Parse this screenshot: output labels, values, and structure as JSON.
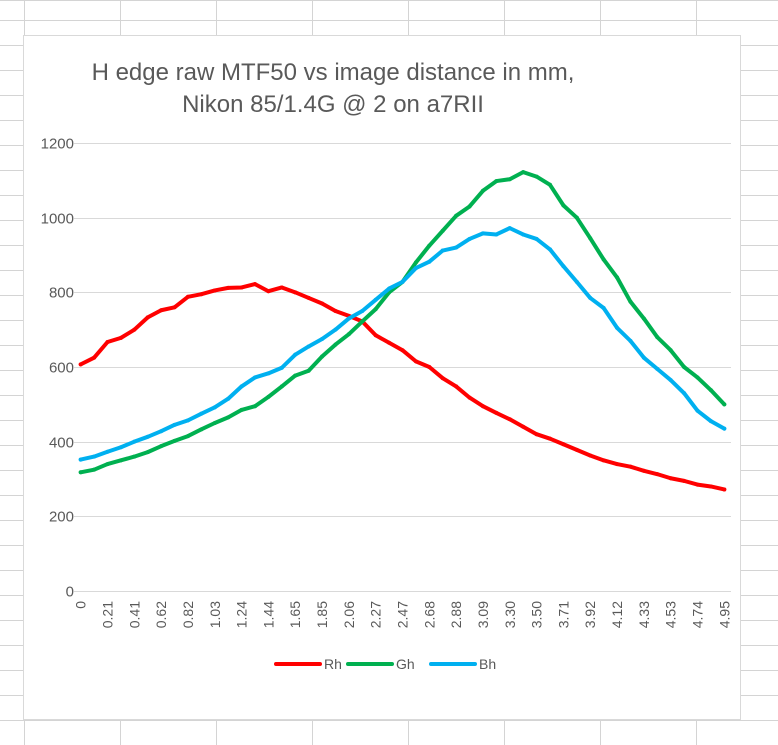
{
  "chart_data": {
    "type": "line",
    "title": "H edge raw MTF50 vs image distance in mm,",
    "subtitle": "Nikon 85/1.4G @ 2 on a7RII",
    "xlabel": "",
    "ylabel": "",
    "ylim": [
      0,
      1200
    ],
    "yticks": [
      0,
      200,
      400,
      600,
      800,
      1000,
      1200
    ],
    "grid": true,
    "legend_position": "bottom",
    "x": [
      0,
      0.1,
      0.21,
      0.31,
      0.41,
      0.52,
      0.62,
      0.72,
      0.82,
      0.93,
      1.03,
      1.13,
      1.24,
      1.34,
      1.44,
      1.55,
      1.65,
      1.75,
      1.85,
      1.96,
      2.06,
      2.16,
      2.27,
      2.37,
      2.47,
      2.58,
      2.68,
      2.78,
      2.88,
      2.99,
      3.09,
      3.19,
      3.3,
      3.4,
      3.5,
      3.61,
      3.71,
      3.81,
      3.92,
      4.02,
      4.12,
      4.22,
      4.33,
      4.43,
      4.53,
      4.64,
      4.74,
      4.84,
      4.95
    ],
    "x_tick_labels": [
      "0",
      "0.21",
      "0.41",
      "0.62",
      "0.82",
      "1.03",
      "1.24",
      "1.44",
      "1.65",
      "1.85",
      "2.06",
      "2.27",
      "2.47",
      "2.68",
      "2.88",
      "3.09",
      "3.30",
      "3.50",
      "3.71",
      "3.92",
      "4.12",
      "4.33",
      "4.53",
      "4.74",
      "4.95"
    ],
    "series": [
      {
        "name": "Rh",
        "color": "#ff0000",
        "values": [
          607,
          625,
          667,
          678,
          700,
          733,
          752,
          760,
          788,
          795,
          805,
          812,
          813,
          822,
          803,
          813,
          800,
          785,
          770,
          750,
          737,
          722,
          685,
          665,
          645,
          615,
          600,
          570,
          548,
          518,
          495,
          477,
          460,
          440,
          420,
          408,
          393,
          378,
          363,
          350,
          340,
          333,
          322,
          313,
          302,
          295,
          285,
          280,
          272
        ]
      },
      {
        "name": "Gh",
        "color": "#00b050",
        "values": [
          318,
          325,
          340,
          350,
          360,
          372,
          388,
          402,
          415,
          433,
          450,
          465,
          485,
          495,
          520,
          548,
          577,
          590,
          628,
          660,
          688,
          722,
          755,
          800,
          828,
          880,
          925,
          965,
          1005,
          1030,
          1072,
          1098,
          1103,
          1122,
          1110,
          1088,
          1033,
          1000,
          945,
          888,
          840,
          775,
          730,
          680,
          645,
          600,
          572,
          538,
          500
        ]
      },
      {
        "name": "Bh",
        "color": "#00b0f0",
        "values": [
          352,
          360,
          373,
          385,
          400,
          413,
          428,
          445,
          457,
          475,
          492,
          515,
          548,
          572,
          583,
          598,
          633,
          655,
          675,
          700,
          730,
          750,
          780,
          810,
          828,
          865,
          882,
          912,
          920,
          943,
          958,
          955,
          972,
          955,
          943,
          915,
          870,
          828,
          785,
          758,
          705,
          670,
          625,
          595,
          565,
          530,
          483,
          455,
          435
        ]
      }
    ]
  },
  "colors": {
    "axis_text": "#595959",
    "gridline": "#d9d9d9",
    "sheet_grid": "#d4d4d4"
  }
}
